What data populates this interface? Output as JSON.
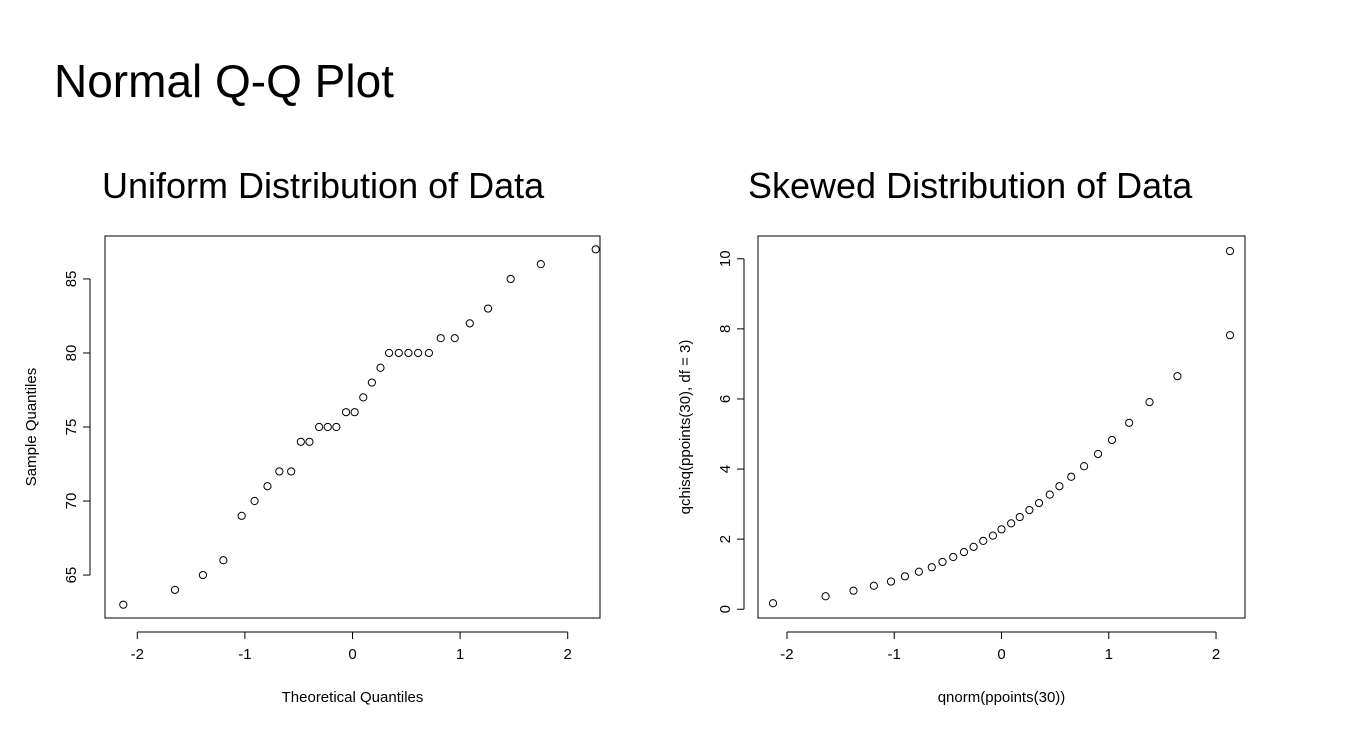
{
  "page": {
    "title": "Normal Q-Q Plot"
  },
  "chart_data": [
    {
      "type": "scatter",
      "title": "Uniform Distribution of Data",
      "xlabel": "Theoretical Quantiles",
      "ylabel": "Sample Quantiles",
      "xlim": [
        -2.3,
        2.3
      ],
      "ylim": [
        62.1,
        87.9
      ],
      "x_ticks": [
        -2,
        -1,
        0,
        1,
        2
      ],
      "x_tick_labels": [
        "-2",
        "-1",
        "0",
        "1",
        "2"
      ],
      "y_ticks": [
        65,
        70,
        75,
        80,
        85
      ],
      "y_tick_labels": [
        "65",
        "70",
        "75",
        "80",
        "85"
      ],
      "marker": "open-circle",
      "grid": false,
      "points": [
        [
          -2.13,
          63
        ],
        [
          -1.65,
          64
        ],
        [
          -1.39,
          65
        ],
        [
          -1.2,
          66
        ],
        [
          -1.03,
          69
        ],
        [
          -0.91,
          70
        ],
        [
          -0.79,
          71
        ],
        [
          -0.68,
          72
        ],
        [
          -0.57,
          72
        ],
        [
          -0.48,
          74
        ],
        [
          -0.4,
          74
        ],
        [
          -0.31,
          75
        ],
        [
          -0.23,
          75
        ],
        [
          -0.15,
          75
        ],
        [
          -0.06,
          76
        ],
        [
          0.02,
          76
        ],
        [
          0.1,
          77
        ],
        [
          0.18,
          78
        ],
        [
          0.26,
          79
        ],
        [
          0.34,
          80
        ],
        [
          0.43,
          80
        ],
        [
          0.52,
          80
        ],
        [
          0.61,
          80
        ],
        [
          0.71,
          80
        ],
        [
          0.82,
          81
        ],
        [
          0.95,
          81
        ],
        [
          1.09,
          82
        ],
        [
          1.26,
          83
        ],
        [
          1.47,
          85
        ],
        [
          1.75,
          86
        ],
        [
          2.26,
          87
        ]
      ]
    },
    {
      "type": "scatter",
      "title": "Skewed Distribution of Data",
      "xlabel": "qnorm(ppoints(30))",
      "ylabel": "qchisq(ppoints(30), df = 3)",
      "xlim": [
        -2.27,
        2.27
      ],
      "ylim": [
        -0.25,
        10.65
      ],
      "x_ticks": [
        -2,
        -1,
        0,
        1,
        2
      ],
      "x_tick_labels": [
        "-2",
        "-1",
        "0",
        "1",
        "2"
      ],
      "y_ticks": [
        0,
        2,
        4,
        6,
        8,
        10
      ],
      "y_tick_labels": [
        "0",
        "2",
        "4",
        "6",
        "8",
        "10"
      ],
      "marker": "open-circle",
      "grid": false,
      "points": [
        [
          -2.13,
          0.17
        ],
        [
          -1.64,
          0.37
        ],
        [
          -1.38,
          0.53
        ],
        [
          -1.19,
          0.67
        ],
        [
          -1.03,
          0.79
        ],
        [
          -0.9,
          0.94
        ],
        [
          -0.77,
          1.07
        ],
        [
          -0.65,
          1.2
        ],
        [
          -0.55,
          1.35
        ],
        [
          -0.45,
          1.49
        ],
        [
          -0.35,
          1.63
        ],
        [
          -0.26,
          1.78
        ],
        [
          -0.17,
          1.95
        ],
        [
          -0.08,
          2.1
        ],
        [
          0.0,
          2.28
        ],
        [
          0.09,
          2.45
        ],
        [
          0.17,
          2.63
        ],
        [
          0.26,
          2.83
        ],
        [
          0.35,
          3.03
        ],
        [
          0.45,
          3.27
        ],
        [
          0.54,
          3.51
        ],
        [
          0.65,
          3.78
        ],
        [
          0.77,
          4.08
        ],
        [
          0.9,
          4.43
        ],
        [
          1.03,
          4.83
        ],
        [
          1.19,
          5.32
        ],
        [
          1.38,
          5.91
        ],
        [
          1.64,
          6.65
        ],
        [
          2.13,
          7.82
        ],
        [
          2.13,
          10.22
        ]
      ]
    }
  ]
}
